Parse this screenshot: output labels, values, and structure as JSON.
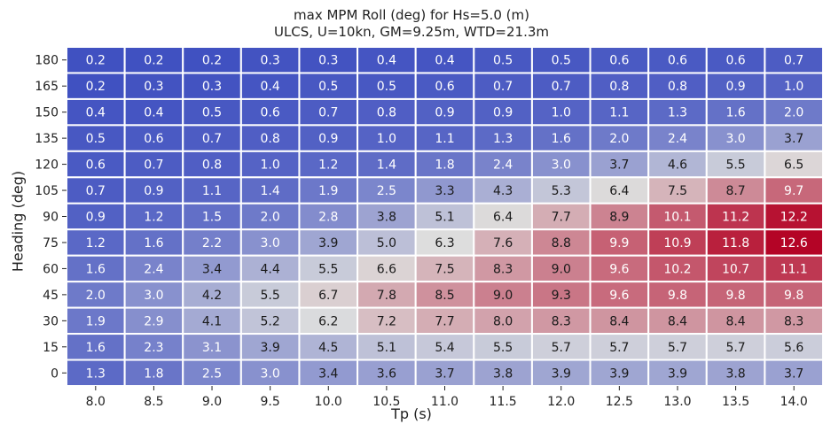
{
  "chart_data": {
    "type": "heatmap",
    "title": "max MPM Roll (deg) for Hs=5.0 (m)",
    "subtitle": "ULCS, U=10kn, GM=9.25m, WTD=21.3m",
    "xlabel": "Tp (s)",
    "ylabel": "Heading (deg)",
    "x_categories": [
      "8.0",
      "8.5",
      "9.0",
      "9.5",
      "10.0",
      "10.5",
      "11.0",
      "11.5",
      "12.0",
      "12.5",
      "13.0",
      "13.5",
      "14.0"
    ],
    "y_categories": [
      "180",
      "165",
      "150",
      "135",
      "120",
      "105",
      "90",
      "75",
      "60",
      "45",
      "30",
      "15",
      "0"
    ],
    "values": [
      [
        0.2,
        0.2,
        0.2,
        0.3,
        0.3,
        0.4,
        0.4,
        0.5,
        0.5,
        0.6,
        0.6,
        0.6,
        0.7
      ],
      [
        0.2,
        0.3,
        0.3,
        0.4,
        0.5,
        0.5,
        0.6,
        0.7,
        0.7,
        0.8,
        0.8,
        0.9,
        1.0
      ],
      [
        0.4,
        0.4,
        0.5,
        0.6,
        0.7,
        0.8,
        0.9,
        0.9,
        1.0,
        1.1,
        1.3,
        1.6,
        2.0
      ],
      [
        0.5,
        0.6,
        0.7,
        0.8,
        0.9,
        1.0,
        1.1,
        1.3,
        1.6,
        2.0,
        2.4,
        3.0,
        3.7
      ],
      [
        0.6,
        0.7,
        0.8,
        1.0,
        1.2,
        1.4,
        1.8,
        2.4,
        3.0,
        3.7,
        4.6,
        5.5,
        6.5
      ],
      [
        0.7,
        0.9,
        1.1,
        1.4,
        1.9,
        2.5,
        3.3,
        4.3,
        5.3,
        6.4,
        7.5,
        8.7,
        9.7
      ],
      [
        0.9,
        1.2,
        1.5,
        2.0,
        2.8,
        3.8,
        5.1,
        6.4,
        7.7,
        8.9,
        10.1,
        11.2,
        12.2
      ],
      [
        1.2,
        1.6,
        2.2,
        3.0,
        3.9,
        5.0,
        6.3,
        7.6,
        8.8,
        9.9,
        10.9,
        11.8,
        12.6
      ],
      [
        1.6,
        2.4,
        3.4,
        4.4,
        5.5,
        6.6,
        7.5,
        8.3,
        9.0,
        9.6,
        10.2,
        10.7,
        11.1
      ],
      [
        2.0,
        3.0,
        4.2,
        5.5,
        6.7,
        7.8,
        8.5,
        9.0,
        9.3,
        9.6,
        9.8,
        9.8,
        9.8
      ],
      [
        1.9,
        2.9,
        4.1,
        5.2,
        6.2,
        7.2,
        7.7,
        8.0,
        8.3,
        8.4,
        8.4,
        8.4,
        8.3
      ],
      [
        1.6,
        2.3,
        3.1,
        3.9,
        4.5,
        5.1,
        5.4,
        5.5,
        5.7,
        5.7,
        5.7,
        5.7,
        5.6
      ],
      [
        1.3,
        1.8,
        2.5,
        3.0,
        3.4,
        3.6,
        3.7,
        3.8,
        3.9,
        3.9,
        3.9,
        3.8,
        3.7
      ]
    ],
    "colormap": "coolwarm",
    "color_range": [
      0,
      12.6
    ],
    "colors": {
      "low": "#3b4cc0",
      "mid": "#dddddd",
      "high": "#b40426"
    },
    "grid": false,
    "annotations": "cell values"
  }
}
